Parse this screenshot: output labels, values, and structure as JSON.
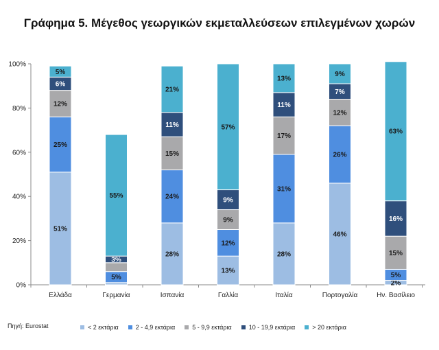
{
  "chart_data": {
    "type": "bar",
    "stacked": true,
    "title": "Γράφημα 5. Μέγεθος γεωργικών εκμεταλλεύσεων επιλεγμένων χωρών",
    "categories": [
      "Ελλάδα",
      "Γερμανία",
      "Ισπανία",
      "Γαλλία",
      "Ιταλία",
      "Πορτογαλία",
      "Ην. Βασίλειο"
    ],
    "yticks": [
      "0%",
      "20%",
      "40%",
      "60%",
      "80%",
      "100%"
    ],
    "ylim": [
      0,
      100
    ],
    "grid": false,
    "legend_position": "bottom",
    "series": [
      {
        "name": "< 2 εκτάρια",
        "color": "#9dbde3",
        "values": [
          51,
          1,
          28,
          13,
          28,
          46,
          2
        ],
        "labels": [
          "51%",
          "",
          "28%",
          "13%",
          "28%",
          "46%",
          "2%"
        ]
      },
      {
        "name": "2 - 4,9 εκτάρια",
        "color": "#4f8ee0",
        "values": [
          25,
          5,
          24,
          12,
          31,
          26,
          5
        ],
        "labels": [
          "25%",
          "5%",
          "24%",
          "12%",
          "31%",
          "26%",
          "5%"
        ]
      },
      {
        "name": "5 - 9,9 εκτάρια",
        "color": "#a9a9ab",
        "values": [
          12,
          4,
          15,
          9,
          17,
          12,
          15
        ],
        "labels": [
          "12%",
          "",
          "15%",
          "9%",
          "17%",
          "12%",
          "15%"
        ]
      },
      {
        "name": "10 - 19,9 εκτάρια",
        "color": "#2f4f7c",
        "values": [
          6,
          3,
          11,
          9,
          11,
          7,
          16
        ],
        "labels": [
          "6%",
          "3%",
          "11%",
          "9%",
          "11%",
          "7%",
          "16%"
        ]
      },
      {
        "name": "> 20 εκτάρια",
        "color": "#4bb0cf",
        "values": [
          5,
          55,
          21,
          57,
          13,
          9,
          63
        ],
        "labels": [
          "5%",
          "55%",
          "21%",
          "57%",
          "13%",
          "9%",
          "63%"
        ]
      }
    ],
    "source": "Πηγή: Eurostat"
  }
}
